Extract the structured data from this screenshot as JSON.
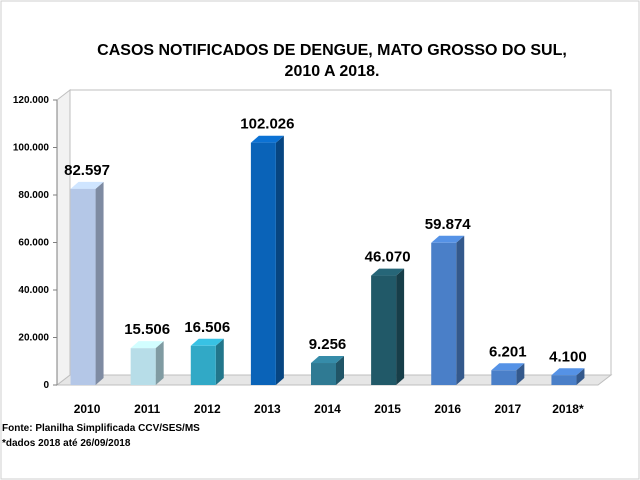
{
  "chart_data": {
    "type": "bar",
    "title_lines": [
      "CASOS NOTIFICADOS  DE DENGUE, MATO GROSSO DO SUL,",
      "2010 A 2018."
    ],
    "categories": [
      "2010",
      "2011",
      "2012",
      "2013",
      "2014",
      "2015",
      "2016",
      "2017",
      "2018*"
    ],
    "values": [
      82597,
      15506,
      16506,
      102026,
      9256,
      46070,
      59874,
      6201,
      4100
    ],
    "value_labels": [
      "82.597",
      "15.506",
      "16.506",
      "102.026",
      "9.256",
      "46.070",
      "59.874",
      "6.201",
      "4.100"
    ],
    "colors": [
      "#b4c7e7",
      "#b7dde8",
      "#31a9c6",
      "#0a63b8",
      "#2f7a93",
      "#215968",
      "#4a7fc8",
      "#4a7fc8",
      "#4a7fc8"
    ],
    "y_ticks": [
      0,
      20000,
      40000,
      60000,
      80000,
      100000,
      120000
    ],
    "y_tick_labels": [
      "0",
      "20.000",
      "40.000",
      "60.000",
      "80.000",
      "100.000",
      "120.000"
    ],
    "ylim": [
      0,
      120000
    ],
    "grid": false,
    "xlabel": "",
    "ylabel": ""
  },
  "footnotes": {
    "source": "Fonte: Planilha Simplificada CCV/SES/MS",
    "note": "*dados 2018 até 26/09/2018"
  }
}
